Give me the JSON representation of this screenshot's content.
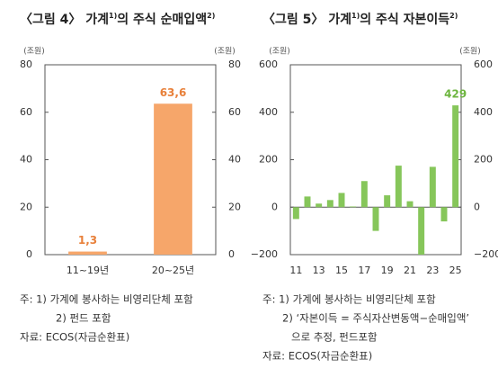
{
  "chart_data": [
    {
      "type": "bar",
      "title_parts": [
        "〈그림 4〉 가계",
        "1)",
        "의 주식 순매입액",
        "2)"
      ],
      "ylabel": "(조원)",
      "y2label": "(조원)",
      "categories": [
        "11~19년",
        "20~25년"
      ],
      "values": [
        1.3,
        63.6
      ],
      "value_labels": [
        "1,3",
        "63,6"
      ],
      "color": "#f6a66a",
      "label_color": "#e8803a",
      "ylim": [
        0,
        80
      ],
      "yticks": [
        0,
        20,
        40,
        60,
        80
      ],
      "y2lim": [
        0,
        80
      ],
      "y2ticks": [
        0,
        20,
        40,
        60,
        80
      ],
      "notes": [
        "주: 1) 가계에 봉사하는 비영리단체 포함",
        "2) 펀드 포함",
        "자료: ECOS(자금순환표)"
      ]
    },
    {
      "type": "bar",
      "title_parts": [
        "〈그림 5〉 가계",
        "1)",
        "의 주식 자본이득",
        "2)"
      ],
      "ylabel": "(조원)",
      "y2label": "(조원)",
      "categories": [
        "11",
        null,
        "13",
        null,
        "15",
        null,
        "17",
        null,
        "19",
        null,
        "21",
        null,
        "23",
        null,
        "25"
      ],
      "values": [
        -50,
        45,
        15,
        30,
        60,
        3,
        110,
        -100,
        50,
        175,
        25,
        -200,
        170,
        -60,
        429
      ],
      "value_labels": [
        null,
        null,
        null,
        null,
        null,
        null,
        null,
        null,
        null,
        null,
        null,
        null,
        null,
        null,
        "429"
      ],
      "color": "#86c65a",
      "label_color": "#6db53f",
      "ylim": [
        -200,
        600
      ],
      "yticks": [
        {
          "value": -200,
          "label": "−200"
        },
        0,
        200,
        400,
        600
      ],
      "y2lim": [
        -200,
        600
      ],
      "y2ticks": [
        {
          "value": -200,
          "label": "−200"
        },
        0,
        200,
        400,
        600
      ],
      "notes": [
        "주: 1) 가계에 봉사하는 비영리단체 포함",
        "2) ‘자본이득 = 주식자산변동액−순매입액’",
        "으로 추정, 펀드포함",
        "자료: ECOS(자금순환표)"
      ]
    }
  ]
}
